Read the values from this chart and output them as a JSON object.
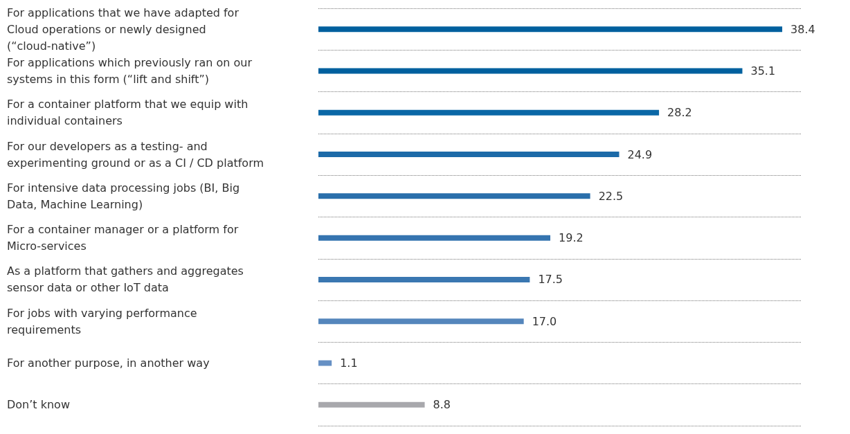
{
  "chart_data": {
    "type": "bar",
    "orientation": "horizontal",
    "categories": [
      "For applications that we have adapted for Cloud operations or newly designed (“cloud-native”)",
      "For applications which previously ran on our systems in this form (“lift and shift”)",
      "For a container platform that we equip with individual containers",
      "For our developers as a testing- and experimenting ground or as a CI / CD platform",
      "For intensive data processing jobs (BI, Big Data, Machine Learning)",
      "For a container manager or a platform for Micro-services",
      "As a platform that gathers and aggregates sensor data or other IoT data",
      "For jobs with varying performance requirements",
      "For another purpose, in another way",
      "Don’t know"
    ],
    "values": [
      38.4,
      35.1,
      28.2,
      24.9,
      22.5,
      19.2,
      17.5,
      17.0,
      1.1,
      8.8
    ],
    "colors": [
      "#00609e",
      "#00609e",
      "#0a67a6",
      "#1c6aa8",
      "#2a6fab",
      "#3574b0",
      "#3a77b1",
      "#5586bc",
      "#6690c4",
      "#a8a8ac"
    ],
    "value_labels": [
      "38.4",
      "35.1",
      "28.2",
      "24.9",
      "22.5",
      "19.2",
      "17.5",
      "17.0",
      "1.1",
      "8.8"
    ],
    "grid": "y"
  }
}
